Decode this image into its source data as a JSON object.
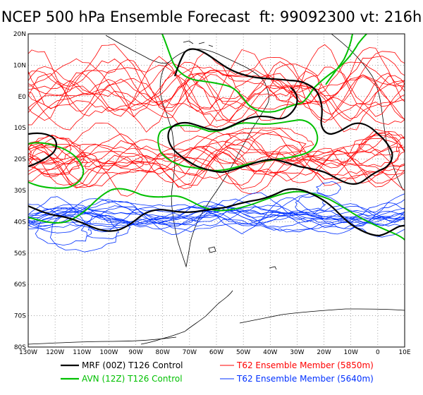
{
  "title": "NCEP 500 hPa Ensemble Forecast  ft: 99092300 vt: 216h",
  "map": {
    "lon_ticks": [
      "130W",
      "120W",
      "110W",
      "100W",
      "90W",
      "80W",
      "70W",
      "60W",
      "50W",
      "40W",
      "30W",
      "20W",
      "10W",
      "0",
      "10E"
    ],
    "lat_ticks": [
      "20N",
      "10N",
      "E0",
      "10S",
      "20S",
      "30S",
      "40S",
      "50S",
      "60S",
      "70S",
      "80S"
    ],
    "colors": {
      "mrf": "#000000",
      "avn": "#00c000",
      "t62_5850": "#ff0000",
      "t62_5640": "#0030ff",
      "grid": "#707070",
      "coast": "#000000"
    }
  },
  "legend": {
    "mrf": "MRF (00Z) T126 Control",
    "avn": "AVN (12Z) T126 Control",
    "t62_5850": "T62 Ensemble Member (5850m)",
    "t62_5640": "T62 Ensemble Member (5640m)"
  }
}
